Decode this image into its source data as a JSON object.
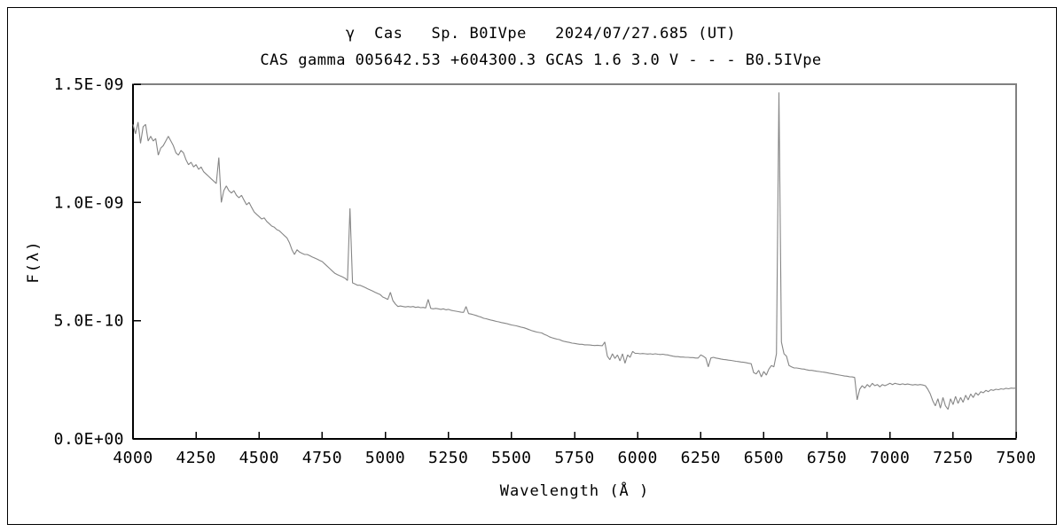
{
  "figure": {
    "background": "#ffffff",
    "line_color": "#868686",
    "axis_color": "#000000",
    "frame_color": "#808080",
    "border_color": "#000000"
  },
  "chart_data": {
    "type": "line",
    "title": "γ  Cas   Sp. B0IVpe   2024/07/27.685 (UT)",
    "subtitle": "CAS gamma 005642.53 +604300.3 GCAS 1.6 3.0 V - - - B0.5IVpe",
    "xlabel": "Wavelength (Å )",
    "ylabel": "F(λ)",
    "xlim": [
      4000,
      7500
    ],
    "ylim": [
      0,
      1.5e-09
    ],
    "grid": false,
    "legend": null,
    "x_ticks": [
      4000,
      4250,
      4500,
      4750,
      5000,
      5250,
      5500,
      5750,
      6000,
      6250,
      6500,
      6750,
      7000,
      7250,
      7500
    ],
    "y_ticks": [
      {
        "value": 0,
        "label": "0.0E+00"
      },
      {
        "value": 5e-10,
        "label": "5.0E-10"
      },
      {
        "value": 1e-09,
        "label": "1.0E-09"
      },
      {
        "value": 1.5e-09,
        "label": "1.5E-09"
      }
    ],
    "x_start": 4000,
    "x_step": 10,
    "flux_scale": 1e-10,
    "flux_1e10": [
      13.3,
      12.9,
      13.4,
      12.5,
      13.2,
      13.3,
      12.6,
      12.8,
      12.6,
      12.7,
      12.0,
      12.3,
      12.4,
      12.6,
      12.8,
      12.6,
      12.4,
      12.1,
      12.0,
      12.2,
      12.1,
      11.8,
      11.6,
      11.7,
      11.5,
      11.6,
      11.4,
      11.5,
      11.3,
      11.2,
      11.1,
      11.0,
      10.9,
      10.8,
      11.9,
      10.0,
      10.5,
      10.7,
      10.5,
      10.4,
      10.5,
      10.3,
      10.2,
      10.3,
      10.1,
      9.9,
      10.0,
      9.8,
      9.6,
      9.5,
      9.4,
      9.3,
      9.35,
      9.2,
      9.1,
      9.0,
      8.95,
      8.85,
      8.8,
      8.7,
      8.6,
      8.5,
      8.3,
      8.0,
      7.8,
      8.0,
      7.9,
      7.85,
      7.8,
      7.8,
      7.75,
      7.7,
      7.65,
      7.6,
      7.55,
      7.5,
      7.4,
      7.3,
      7.2,
      7.1,
      7.0,
      6.95,
      6.9,
      6.85,
      6.8,
      6.7,
      9.75,
      6.6,
      6.55,
      6.5,
      6.5,
      6.45,
      6.4,
      6.35,
      6.3,
      6.25,
      6.2,
      6.15,
      6.1,
      6.0,
      5.95,
      5.9,
      6.2,
      5.85,
      5.7,
      5.6,
      5.62,
      5.6,
      5.58,
      5.6,
      5.58,
      5.6,
      5.56,
      5.58,
      5.55,
      5.56,
      5.54,
      5.9,
      5.52,
      5.5,
      5.52,
      5.5,
      5.48,
      5.5,
      5.46,
      5.48,
      5.44,
      5.42,
      5.4,
      5.38,
      5.36,
      5.35,
      5.6,
      5.3,
      5.28,
      5.25,
      5.22,
      5.18,
      5.15,
      5.1,
      5.08,
      5.05,
      5.02,
      5.0,
      4.97,
      4.95,
      4.92,
      4.9,
      4.88,
      4.85,
      4.82,
      4.8,
      4.78,
      4.75,
      4.72,
      4.7,
      4.66,
      4.62,
      4.58,
      4.55,
      4.52,
      4.5,
      4.48,
      4.42,
      4.38,
      4.32,
      4.28,
      4.25,
      4.22,
      4.2,
      4.15,
      4.12,
      4.1,
      4.08,
      4.05,
      4.04,
      4.02,
      4.0,
      4.0,
      3.98,
      3.98,
      3.97,
      3.96,
      3.95,
      3.96,
      3.95,
      3.94,
      4.1,
      3.5,
      3.35,
      3.6,
      3.4,
      3.55,
      3.3,
      3.6,
      3.2,
      3.55,
      3.45,
      3.7,
      3.62,
      3.62,
      3.6,
      3.61,
      3.6,
      3.59,
      3.6,
      3.58,
      3.6,
      3.58,
      3.57,
      3.58,
      3.56,
      3.55,
      3.52,
      3.5,
      3.48,
      3.48,
      3.46,
      3.46,
      3.45,
      3.45,
      3.44,
      3.44,
      3.42,
      3.42,
      3.55,
      3.5,
      3.42,
      3.05,
      3.42,
      3.45,
      3.42,
      3.4,
      3.38,
      3.36,
      3.35,
      3.33,
      3.32,
      3.3,
      3.28,
      3.27,
      3.25,
      3.24,
      3.22,
      3.2,
      3.18,
      2.8,
      2.75,
      2.9,
      2.62,
      2.85,
      2.7,
      2.95,
      3.1,
      3.05,
      3.6,
      14.65,
      4.1,
      3.6,
      3.5,
      3.1,
      3.05,
      3.0,
      3.0,
      2.98,
      2.96,
      2.95,
      2.92,
      2.9,
      2.9,
      2.88,
      2.86,
      2.85,
      2.83,
      2.82,
      2.8,
      2.78,
      2.76,
      2.74,
      2.72,
      2.7,
      2.68,
      2.66,
      2.65,
      2.63,
      2.62,
      2.6,
      1.65,
      2.1,
      2.25,
      2.15,
      2.3,
      2.2,
      2.35,
      2.25,
      2.3,
      2.2,
      2.3,
      2.25,
      2.3,
      2.35,
      2.3,
      2.35,
      2.32,
      2.3,
      2.33,
      2.3,
      2.32,
      2.3,
      2.28,
      2.3,
      2.28,
      2.3,
      2.28,
      2.25,
      2.1,
      1.9,
      1.6,
      1.4,
      1.7,
      1.3,
      1.75,
      1.4,
      1.25,
      1.7,
      1.45,
      1.8,
      1.5,
      1.75,
      1.55,
      1.85,
      1.65,
      1.9,
      1.75,
      1.95,
      1.85,
      2.0,
      1.95,
      2.05,
      2.0,
      2.08,
      2.05,
      2.1,
      2.08,
      2.12,
      2.1,
      2.14,
      2.12,
      2.15,
      2.14,
      2.15
    ]
  }
}
